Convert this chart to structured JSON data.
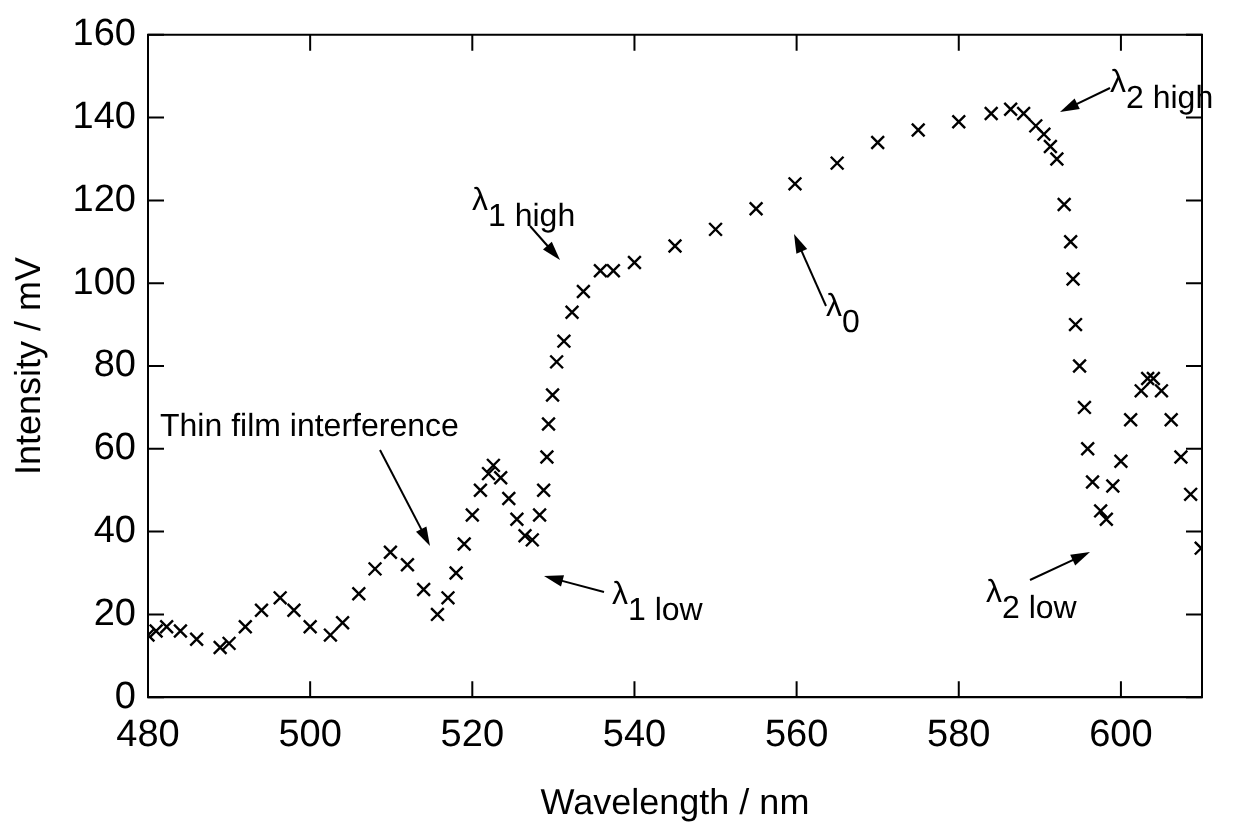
{
  "chart_data": {
    "type": "scatter",
    "xlabel": "Wavelength / nm",
    "ylabel": "Intensity / mV",
    "marker": "cross",
    "grid": false,
    "legend": false,
    "xlim": [
      480,
      610
    ],
    "xticks": [
      480,
      500,
      520,
      540,
      560,
      580,
      600
    ],
    "ylim": [
      0,
      160
    ],
    "yticks": [
      0,
      20,
      40,
      60,
      80,
      100,
      120,
      140,
      160
    ],
    "series": [
      {
        "color": "#000000",
        "x": [
          480,
          481,
          482.3,
          484,
          486,
          488.9,
          490,
          492,
          494,
          496.3,
          498,
          500,
          502.5,
          504,
          506,
          508,
          509.9,
          512,
          514,
          515.7,
          517,
          518,
          519,
          520,
          521,
          522,
          522.6,
          523.5,
          524.5,
          525.5,
          526.5,
          527.4,
          528.3,
          528.8,
          529.2,
          529.4,
          529.9,
          530.4,
          531.3,
          532.3,
          533.7,
          535.8,
          537.4,
          540,
          545,
          550,
          555,
          559.8,
          565,
          570,
          575,
          580,
          584,
          586.4,
          588,
          589.5,
          590.5,
          591.3,
          592.1,
          593,
          593.8,
          594.1,
          594.4,
          594.9,
          595.5,
          595.9,
          596.5,
          597.5,
          598.2,
          599,
          600,
          601.2,
          602.5,
          603.3,
          604,
          605,
          606.2,
          607.4,
          608.6,
          609.9
        ],
        "values": [
          15,
          16,
          17,
          16,
          14,
          12,
          13,
          17,
          21,
          24,
          21,
          17,
          15,
          18,
          25,
          31,
          35,
          32,
          26,
          20,
          24,
          30,
          37,
          44,
          50,
          54,
          56,
          53,
          48,
          43,
          39,
          38,
          44,
          50,
          58,
          66,
          73,
          81,
          86,
          93,
          98,
          103,
          103,
          105,
          109,
          113,
          118,
          124,
          129,
          134,
          137,
          139,
          141,
          142,
          141,
          138,
          136,
          133,
          130,
          119,
          110,
          101,
          90,
          80,
          70,
          60,
          52,
          45,
          43,
          51,
          57,
          67,
          74,
          77,
          77,
          74,
          67,
          58,
          49,
          36
        ]
      }
    ],
    "annotations": [
      "Thin film interference",
      "λ$_{1 low}$",
      "λ$_{1 high}$",
      "λ$_{0}$",
      "λ$_{2 high}$",
      "λ$_{2 low}$"
    ]
  }
}
